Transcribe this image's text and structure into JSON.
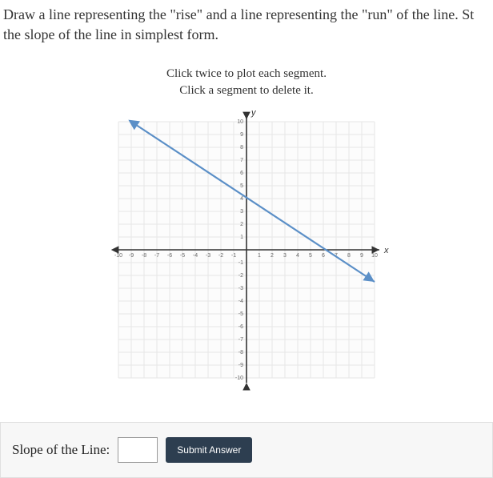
{
  "question": {
    "line1": "Draw a line representing the \"rise\" and a line representing the \"run\" of the line. St",
    "line2": "the slope of the line in simplest form."
  },
  "instruction": {
    "line1": "Click twice to plot each segment.",
    "line2": "Click a segment to delete it."
  },
  "graph": {
    "xmin": -10,
    "xmax": 10,
    "ymin": -10,
    "ymax": 10,
    "tick_step": 1,
    "x_axis_label": "x",
    "y_axis_label": "y",
    "grid_color": "#e6e6e6",
    "axis_color": "#333333",
    "tick_label_color": "#666666",
    "tick_fontsize": 7,
    "axis_label_fontsize": 11,
    "background_color": "#ffffff",
    "plot_bg": "#fcfcfc",
    "line": {
      "color": "#5b8fc7",
      "width": 2.2,
      "p1": {
        "x": -9,
        "y": 10
      },
      "p2": {
        "x": 10,
        "y": -2.5
      },
      "arrow_start": true,
      "arrow_end": true
    }
  },
  "answer": {
    "label": "Slope of the Line:",
    "value": "",
    "submit_label": "Submit Answer"
  }
}
